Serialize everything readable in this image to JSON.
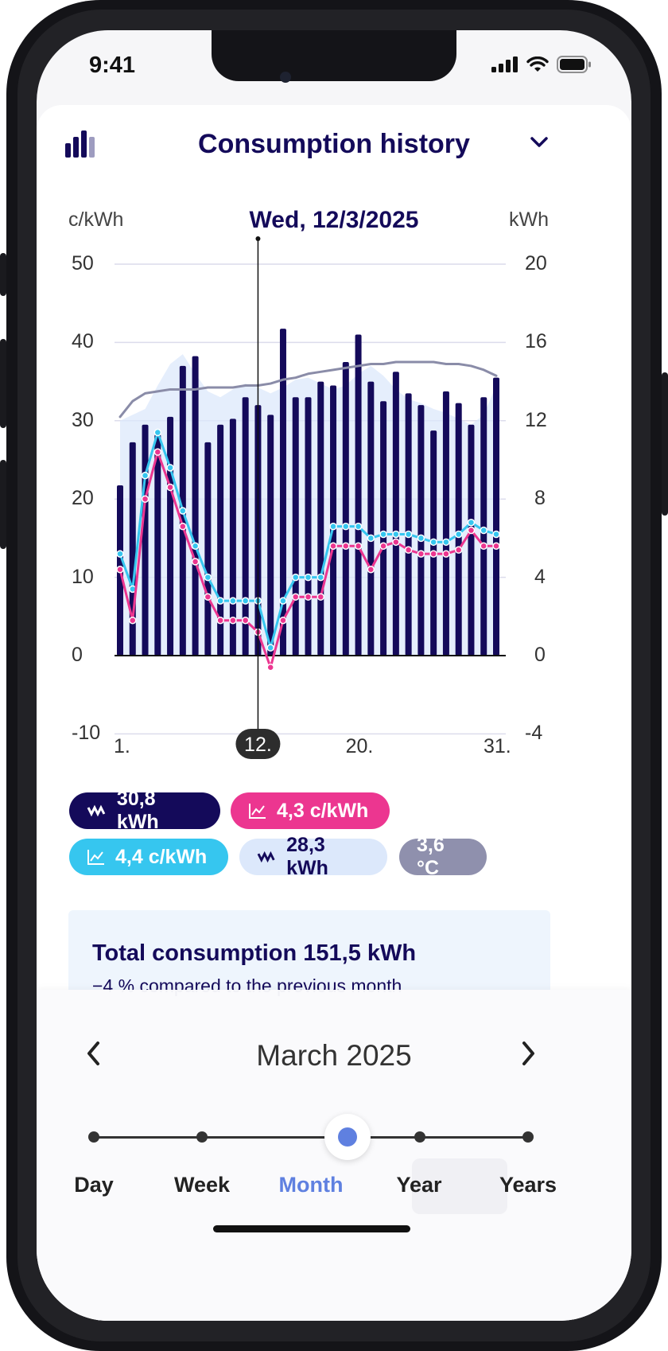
{
  "status_bar": {
    "time": "9:41"
  },
  "header": {
    "title": "Consumption history"
  },
  "chart": {
    "selected_date": "Wed, 12/3/2025",
    "left_unit": "c/kWh",
    "right_unit": "kWh",
    "selected_day_label": "12."
  },
  "chart_data": {
    "type": "bar",
    "title": "",
    "x": [
      1,
      2,
      3,
      4,
      5,
      6,
      7,
      8,
      9,
      10,
      11,
      12,
      13,
      14,
      15,
      16,
      17,
      18,
      19,
      20,
      21,
      22,
      23,
      24,
      25,
      26,
      27,
      28,
      29,
      30,
      31
    ],
    "x_tick_labels": [
      "1.",
      "12.",
      "20.",
      "31."
    ],
    "y_left": {
      "label": "c/kWh",
      "ticks": [
        "50",
        "40",
        "30",
        "20",
        "10",
        "0",
        "-10"
      ],
      "ylim": [
        -10,
        50
      ]
    },
    "y_right": {
      "label": "kWh",
      "ticks": [
        "20",
        "16",
        "12",
        "8",
        "4",
        "0",
        "-4"
      ],
      "ylim": [
        -4,
        20
      ]
    },
    "grid": true,
    "series": [
      {
        "name": "30,8 kWh",
        "type": "bar",
        "axis": "right",
        "color": "#140a5a",
        "values": [
          8.7,
          10.9,
          11.8,
          11.3,
          12.2,
          14.8,
          15.3,
          10.9,
          11.8,
          12.1,
          13.2,
          12.8,
          12.3,
          16.7,
          13.2,
          13.2,
          14.0,
          13.8,
          15.0,
          16.4,
          14.0,
          13.0,
          14.5,
          13.4,
          12.8,
          11.5,
          13.5,
          12.9,
          11.8,
          13.2,
          14.2
        ]
      },
      {
        "name": "28,3 kWh",
        "type": "area",
        "axis": "right",
        "color": "#dce8fb",
        "values": [
          12.0,
          12.3,
          12.6,
          13.8,
          14.9,
          15.4,
          14.4,
          13.5,
          13.2,
          13.6,
          13.9,
          13.7,
          13.4,
          13.7,
          14.1,
          14.2,
          13.9,
          13.6,
          13.8,
          14.4,
          14.8,
          14.3,
          13.6,
          13.1,
          12.9,
          12.6,
          12.4,
          12.1,
          11.8,
          12.3,
          13.8
        ]
      },
      {
        "name": "3,6 °C",
        "type": "line",
        "axis": "right",
        "color": "#8a8ca8",
        "values": [
          12.2,
          13.0,
          13.4,
          13.5,
          13.6,
          13.6,
          13.6,
          13.7,
          13.7,
          13.7,
          13.8,
          13.8,
          13.9,
          14.1,
          14.2,
          14.4,
          14.5,
          14.6,
          14.7,
          14.8,
          14.9,
          14.9,
          15.0,
          15.0,
          15.0,
          15.0,
          14.9,
          14.9,
          14.8,
          14.6,
          14.3
        ]
      },
      {
        "name": "4,4 c/kWh",
        "type": "line",
        "axis": "left",
        "color": "#36c6ef",
        "values": [
          13.0,
          8.5,
          23.0,
          28.5,
          24.0,
          18.5,
          14.0,
          10.0,
          7.0,
          7.0,
          7.0,
          7.0,
          1.0,
          7.0,
          10.0,
          10.0,
          10.0,
          16.5,
          16.5,
          16.5,
          15.0,
          15.5,
          15.5,
          15.5,
          15.0,
          14.5,
          14.5,
          15.5,
          17.0,
          16.0,
          15.5
        ]
      },
      {
        "name": "4,3 c/kWh",
        "type": "line",
        "axis": "left",
        "color": "#ec3690",
        "values": [
          11.0,
          4.5,
          20.0,
          26.0,
          21.5,
          16.5,
          12.0,
          7.5,
          4.5,
          4.5,
          4.5,
          3.0,
          -1.5,
          4.5,
          7.5,
          7.5,
          7.5,
          14.0,
          14.0,
          14.0,
          11.0,
          14.0,
          14.5,
          13.5,
          13.0,
          13.0,
          13.0,
          13.5,
          16.0,
          14.0,
          14.0
        ]
      }
    ],
    "selected_x": 12
  },
  "legend": [
    {
      "label": "30,8 kWh",
      "icon": "grid-bars-icon",
      "bg": "#140a5a",
      "fg": "#ffffff"
    },
    {
      "label": "4,3 c/kWh",
      "icon": "line-chart-icon",
      "bg": "#ec3690",
      "fg": "#ffffff"
    },
    {
      "label": "4,4 c/kWh",
      "icon": "line-chart-icon",
      "bg": "#36c6ef",
      "fg": "#ffffff"
    },
    {
      "label": "28,3 kWh",
      "icon": "grid-bars-icon",
      "bg": "#dce8fb",
      "fg": "#140a5a"
    },
    {
      "label": "3,6 °C",
      "icon": "",
      "bg": "#8f90ad",
      "fg": "#ffffff"
    }
  ],
  "summary": {
    "title": "Total consumption 151,5 kWh",
    "subtitle": "−4 % compared to the previous month"
  },
  "period_nav": {
    "label": "March 2025",
    "segments": [
      "Day",
      "Week",
      "Month",
      "Year",
      "Years"
    ],
    "selected": "Month"
  },
  "colors": {
    "accent": "#140a5a",
    "selected_segment": "#5f80e0"
  }
}
